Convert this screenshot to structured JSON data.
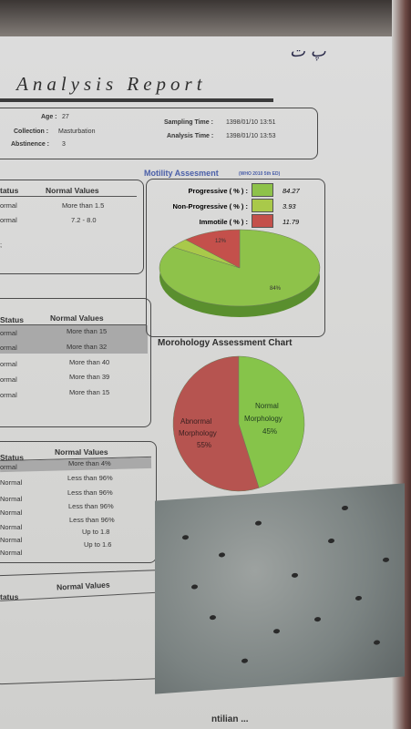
{
  "header": {
    "title": "Analysis Report",
    "logo_text": "پ ت"
  },
  "patient": {
    "age_label": "Age :",
    "age": "27",
    "collection_label": "Collection :",
    "collection": "Masturbation",
    "abstinence_label": "Abstinence :",
    "abstinence": "3",
    "sampling_label": "Sampling Time :",
    "sampling_time": "1398/01/10  13:51",
    "analysis_label": "Analysis Time :",
    "analysis_time": "1398/01/10  13:53"
  },
  "table1": {
    "col_status": "tatus",
    "col_normal": "Normal Values",
    "rows": [
      {
        "status": "ormal",
        "normal": "More than 1.5"
      },
      {
        "status": "ormal",
        "normal": "7.2 - 8.0"
      }
    ],
    "stray": ";"
  },
  "table2": {
    "col_status": "Status",
    "col_normal": "Normal Values",
    "rows": [
      {
        "status": "ormal",
        "normal": "More than  15"
      },
      {
        "status": "ormal",
        "normal": "More than 32"
      },
      {
        "status": "ormal",
        "normal": "More than 40"
      },
      {
        "status": "ormal",
        "normal": "More than  39"
      },
      {
        "status": "ormal",
        "normal": "More than  15"
      }
    ]
  },
  "table3": {
    "col_status": "Status",
    "col_normal": "Normal Values",
    "rows": [
      {
        "status": "ormal",
        "normal": "More than  4%"
      },
      {
        "status": "Normal",
        "normal": "Less than  96%"
      },
      {
        "status": "Normal",
        "normal": "Less than  96%"
      },
      {
        "status": "Normal",
        "normal": "Less than  96%"
      },
      {
        "status": "Normal",
        "normal": "Less than  96%"
      },
      {
        "status": "Normal",
        "normal": "Up to 1.8"
      },
      {
        "status": "Normal",
        "normal": "Up to 1.6"
      },
      {
        "status": "Normal",
        "normal": ""
      }
    ]
  },
  "table4": {
    "col_status": "tatus",
    "col_normal": "Normal Values"
  },
  "motility": {
    "title": "Motility Assesment",
    "subtitle": "(WHO 2010 5th ED)",
    "rows": [
      {
        "label": "Progressive ( % ) :",
        "value": "84.27",
        "color": "#8ec24a"
      },
      {
        "label": "Non-Progressive ( % ) :",
        "value": "3.93",
        "color": "#a9c94a"
      },
      {
        "label": "Immotile ( % ) :",
        "value": "11.79",
        "color": "#c4504b"
      }
    ],
    "pie_label_1": "84%",
    "pie_label_2": "12%"
  },
  "morphology": {
    "title": "Morohology Assessment Chart",
    "abnormal_label_1": "Abnormal",
    "abnormal_label_2": "Morphology",
    "abnormal_label_3": "55%",
    "normal_label_1": "Normal",
    "normal_label_2": "Morphology",
    "normal_label_3": "45%",
    "abnormal_color": "#b65450",
    "normal_color": "#86c44a"
  },
  "footer": {
    "text": "ntilian ..."
  },
  "chart_data": [
    {
      "type": "pie",
      "title": "Motility Assesment",
      "categories": [
        "Progressive",
        "Non-Progressive",
        "Immotile"
      ],
      "values": [
        84.27,
        3.93,
        11.79
      ]
    },
    {
      "type": "pie",
      "title": "Morohology Assessment Chart",
      "categories": [
        "Abnormal Morphology",
        "Normal Morphology"
      ],
      "values": [
        55,
        45
      ]
    }
  ]
}
